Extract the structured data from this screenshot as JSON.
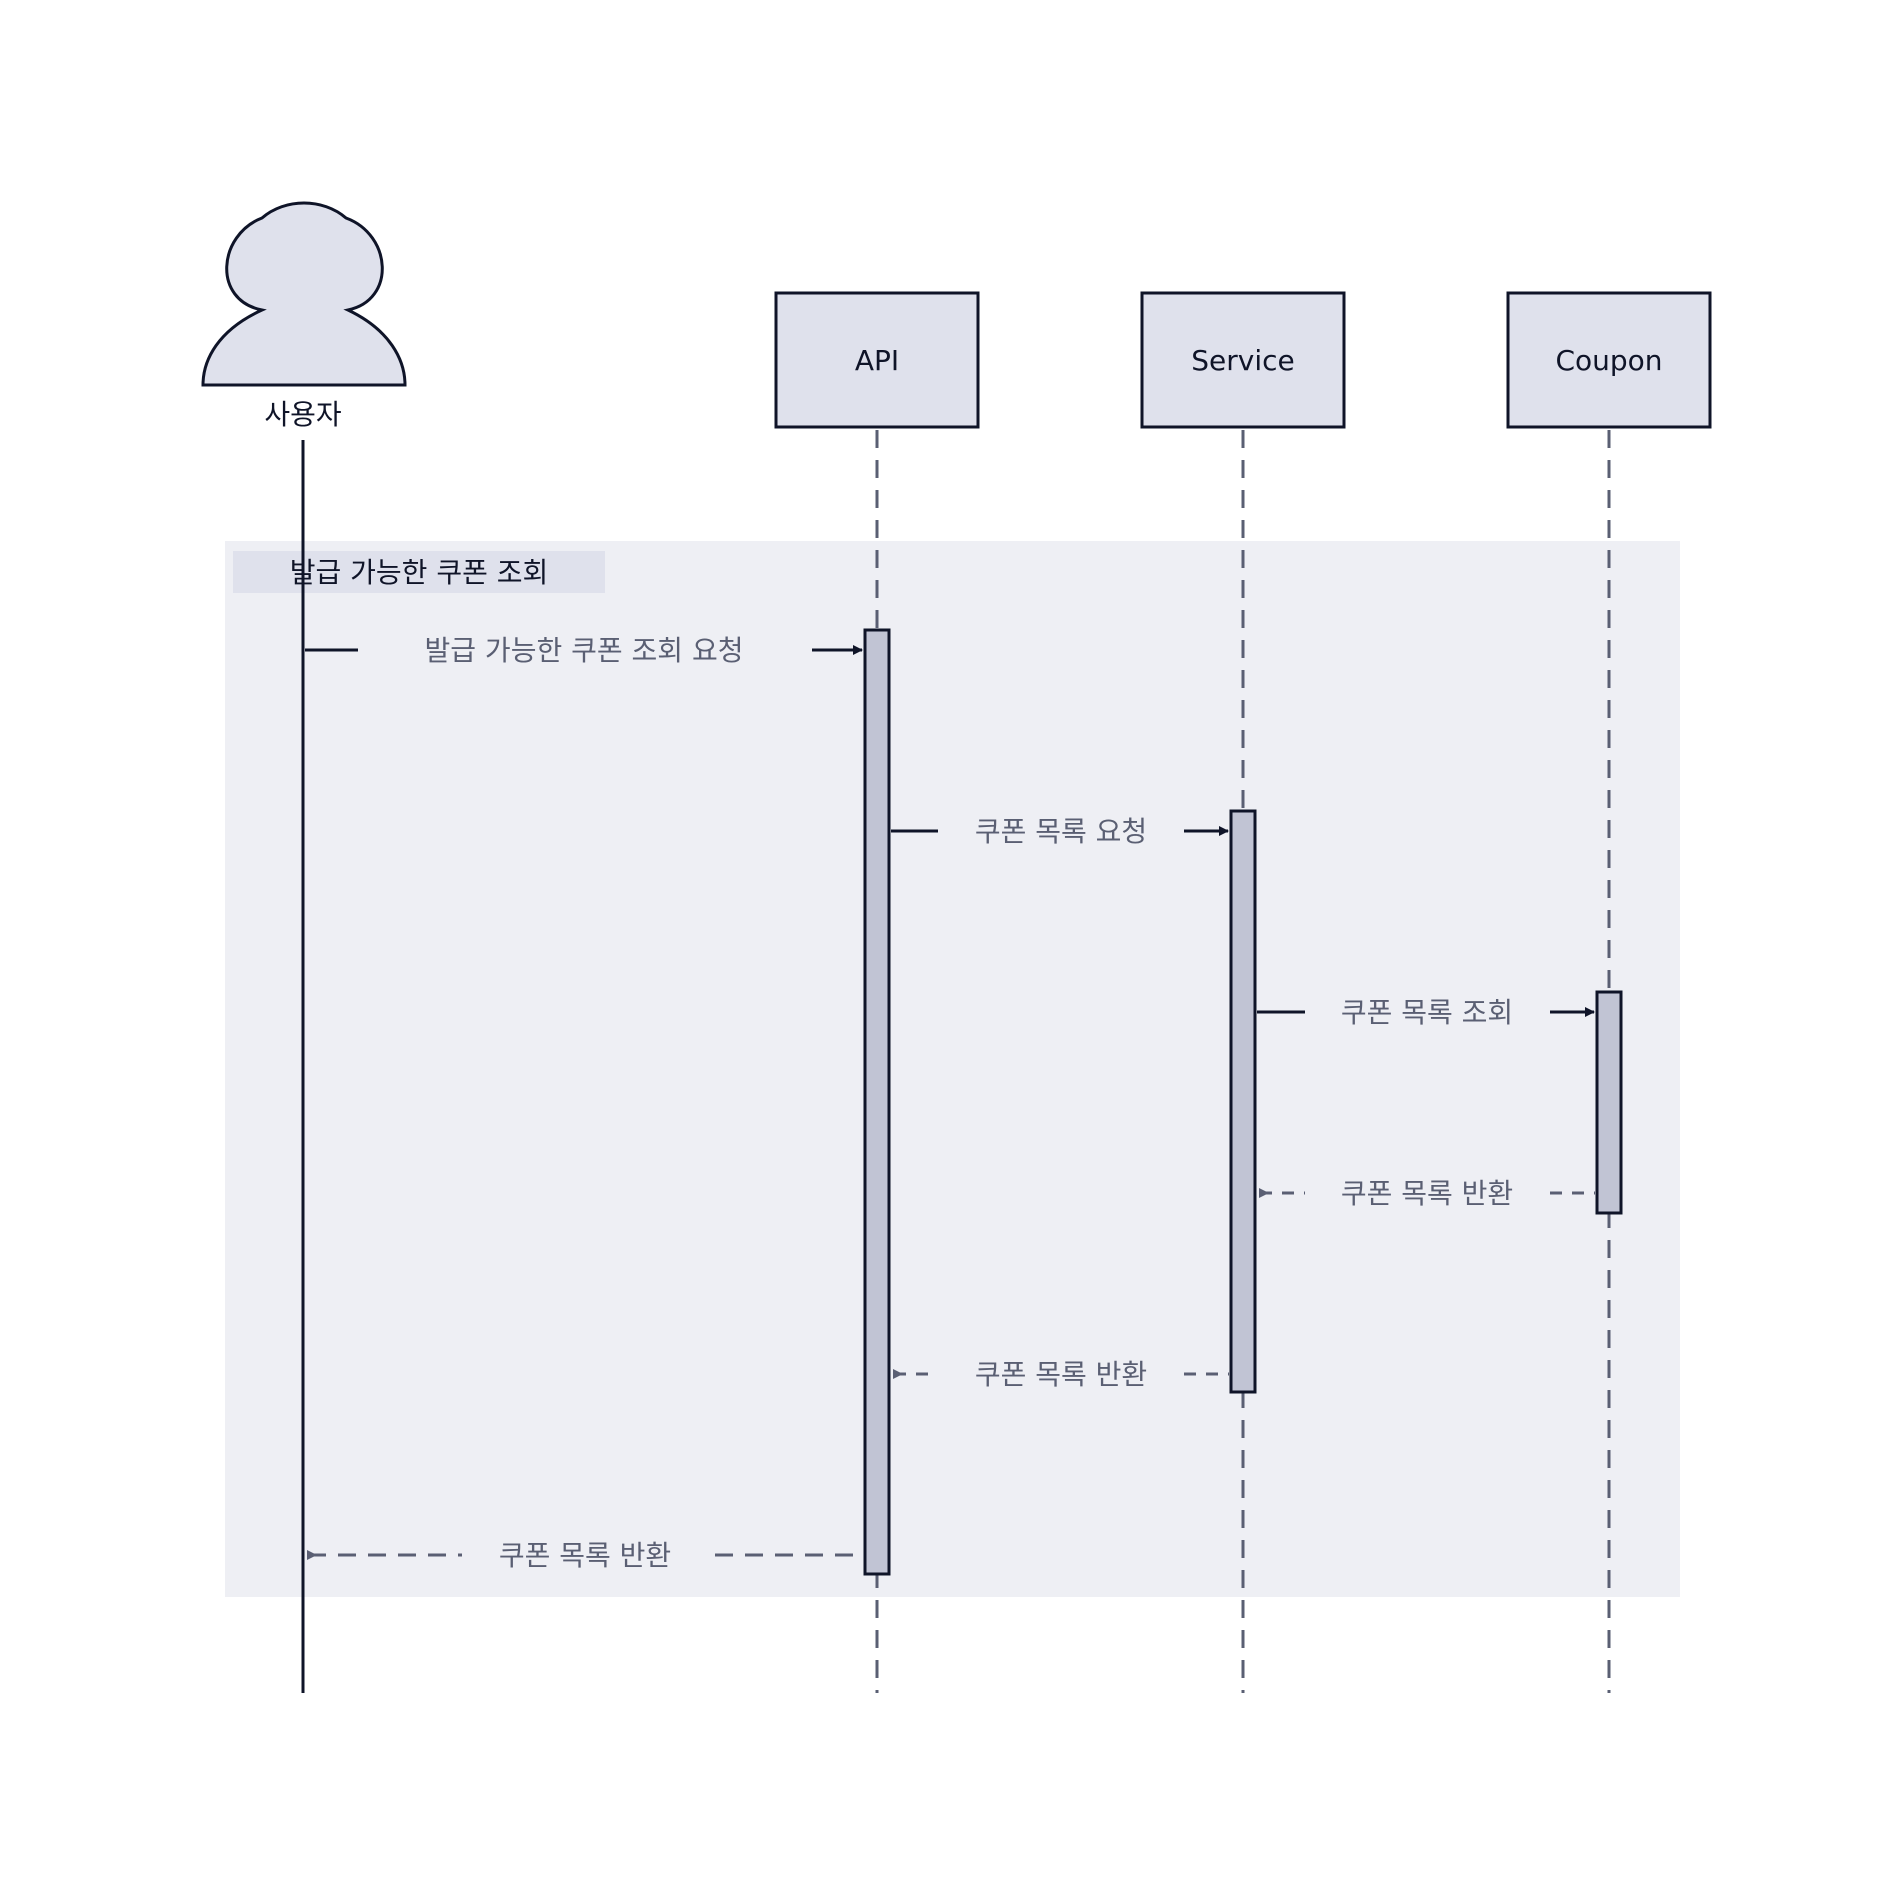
{
  "diagram": {
    "type": "sequence",
    "colors": {
      "background": "#ffffff",
      "frame_fill": "#eeeff4",
      "frame_label_fill": "#dfe1ec",
      "participant_fill": "#dfe1ec",
      "activation_fill": "#c1c4d4",
      "stroke": "#0f1428",
      "message_text": "#5a5f73",
      "return_stroke": "#5a5f73",
      "lifeline": "#5a5f73"
    },
    "participants": [
      {
        "id": "user",
        "label": "사용자",
        "kind": "actor",
        "icon": "person-icon"
      },
      {
        "id": "api",
        "label": "API",
        "kind": "box"
      },
      {
        "id": "service",
        "label": "Service",
        "kind": "box"
      },
      {
        "id": "coupon",
        "label": "Coupon",
        "kind": "box"
      }
    ],
    "frame": {
      "label": "발급 가능한 쿠폰 조회"
    },
    "messages": [
      {
        "from": "user",
        "to": "api",
        "text": "발급 가능한 쿠폰 조회 요청",
        "kind": "call"
      },
      {
        "from": "api",
        "to": "service",
        "text": "쿠폰 목록 요청",
        "kind": "call"
      },
      {
        "from": "service",
        "to": "coupon",
        "text": "쿠폰 목록 조회",
        "kind": "call"
      },
      {
        "from": "coupon",
        "to": "service",
        "text": "쿠폰 목록 반환",
        "kind": "return"
      },
      {
        "from": "service",
        "to": "api",
        "text": "쿠폰 목록 반환",
        "kind": "return"
      },
      {
        "from": "api",
        "to": "user",
        "text": "쿠폰 목록 반환",
        "kind": "return"
      }
    ]
  }
}
